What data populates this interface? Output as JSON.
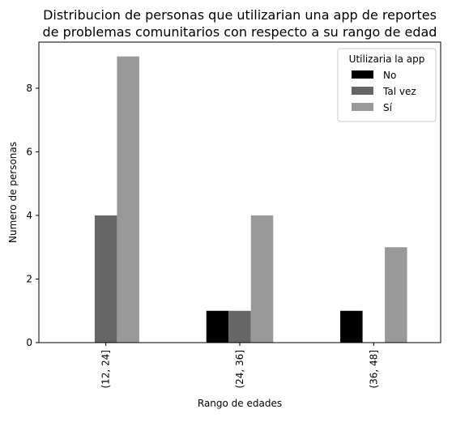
{
  "chart_data": {
    "type": "bar",
    "title": "Distribucion de personas que utilizarian una app de reportes\nde problemas comunitarios con respecto a su rango de edad",
    "xlabel": "Rango de edades",
    "ylabel": "Numero de personas",
    "categories": [
      "(12, 24]",
      "(24, 36]",
      "(36, 48]"
    ],
    "series": [
      {
        "name": "No",
        "values": [
          0,
          1,
          1
        ],
        "color": "#000000"
      },
      {
        "name": "Tal vez",
        "values": [
          4,
          1,
          0
        ],
        "color": "#666666"
      },
      {
        "name": "Sí",
        "values": [
          9,
          4,
          3
        ],
        "color": "#999999"
      }
    ],
    "ylim": [
      0,
      9.45
    ],
    "yticks": [
      0,
      2,
      4,
      6,
      8
    ],
    "grid": false,
    "legend": {
      "title": "Utilizaria la app",
      "placement": "top-right"
    }
  }
}
